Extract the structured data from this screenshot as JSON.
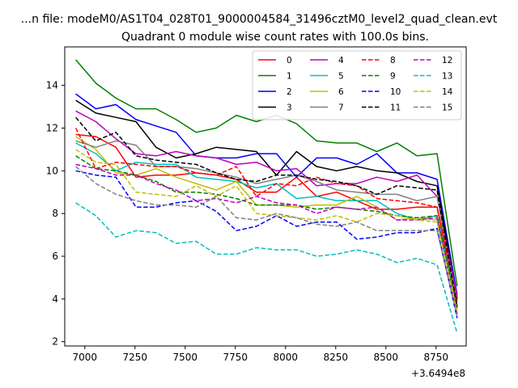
{
  "header": {
    "file_title": "...n file: modeM0/AS1T04_028T01_9000004584_31496cztM0_level2_quad_clean.evt",
    "title": "Quadrant 0 module wise count rates with 100.0s bins."
  },
  "chart_data": {
    "type": "line",
    "title": "Quadrant 0 module wise count rates with 100.0s bins.",
    "xlabel": "",
    "ylabel": "",
    "x_offset_label": "+3.6494e8",
    "xlim": [
      6900,
      8900
    ],
    "ylim": [
      1.8,
      15.8
    ],
    "xticks": [
      7000,
      7250,
      7500,
      7750,
      8000,
      8250,
      8500,
      8750
    ],
    "yticks": [
      2,
      4,
      6,
      8,
      10,
      12,
      14
    ],
    "legend_position": "upper-right",
    "x": [
      6955,
      7055,
      7155,
      7255,
      7355,
      7455,
      7555,
      7655,
      7755,
      7855,
      7955,
      8055,
      8155,
      8255,
      8355,
      8455,
      8555,
      8655,
      8755,
      8855
    ],
    "series": [
      {
        "name": "0",
        "color": "#ff0000",
        "dash": "solid",
        "values": [
          11.7,
          11.6,
          11.1,
          9.7,
          9.8,
          9.8,
          9.9,
          9.8,
          9.6,
          9.0,
          9.0,
          9.7,
          8.8,
          9.0,
          8.6,
          8.2,
          8.2,
          8.3,
          8.3,
          3.7
        ]
      },
      {
        "name": "1",
        "color": "#008000",
        "dash": "solid",
        "values": [
          15.2,
          14.1,
          13.4,
          12.9,
          12.9,
          12.4,
          11.8,
          12.0,
          12.6,
          12.3,
          12.6,
          12.2,
          11.4,
          11.3,
          11.3,
          10.9,
          11.3,
          10.7,
          10.8,
          4.6
        ]
      },
      {
        "name": "2",
        "color": "#0000ff",
        "dash": "solid",
        "values": [
          13.6,
          12.9,
          13.1,
          12.4,
          12.1,
          11.8,
          10.7,
          10.6,
          10.6,
          10.8,
          10.8,
          9.7,
          10.6,
          10.6,
          10.3,
          10.8,
          9.9,
          9.9,
          9.6,
          4.2
        ]
      },
      {
        "name": "3",
        "color": "#000000",
        "dash": "solid",
        "values": [
          13.3,
          12.7,
          12.5,
          12.3,
          11.1,
          10.6,
          10.8,
          11.1,
          11.0,
          10.9,
          9.8,
          10.9,
          10.2,
          10.0,
          10.2,
          10.0,
          9.9,
          9.5,
          9.3,
          4.0
        ]
      },
      {
        "name": "4",
        "color": "#bf00bf",
        "dash": "solid",
        "values": [
          12.8,
          12.3,
          11.5,
          10.8,
          10.7,
          10.9,
          10.7,
          10.6,
          10.3,
          10.4,
          10.0,
          10.1,
          9.3,
          9.4,
          9.4,
          9.7,
          9.5,
          9.8,
          8.8,
          4.1
        ]
      },
      {
        "name": "5",
        "color": "#00bfbf",
        "dash": "solid",
        "values": [
          11.3,
          10.8,
          10.0,
          10.4,
          10.3,
          10.3,
          9.7,
          9.6,
          9.5,
          9.2,
          9.4,
          8.7,
          8.8,
          8.6,
          8.6,
          8.6,
          8.0,
          7.7,
          7.9,
          3.7
        ]
      },
      {
        "name": "6",
        "color": "#bfbf00",
        "dash": "solid",
        "values": [
          11.6,
          11.0,
          9.9,
          9.8,
          10.1,
          9.7,
          9.4,
          9.1,
          9.5,
          8.4,
          8.4,
          8.3,
          8.4,
          8.4,
          8.8,
          8.3,
          7.7,
          7.8,
          7.7,
          3.5
        ]
      },
      {
        "name": "7",
        "color": "#808080",
        "dash": "solid",
        "values": [
          11.4,
          11.1,
          11.4,
          11.2,
          10.2,
          10.2,
          10.1,
          9.9,
          9.7,
          9.4,
          9.6,
          9.8,
          9.5,
          9.1,
          9.0,
          8.9,
          8.9,
          8.6,
          8.8,
          3.6
        ]
      },
      {
        "name": "8",
        "color": "#ff0000",
        "dash": "dashed",
        "values": [
          12.0,
          10.1,
          10.4,
          10.3,
          10.2,
          10.2,
          9.9,
          9.8,
          10.2,
          8.8,
          9.4,
          9.3,
          9.7,
          9.4,
          9.3,
          8.7,
          8.6,
          8.5,
          8.3,
          3.9
        ]
      },
      {
        "name": "9",
        "color": "#008000",
        "dash": "dashed",
        "values": [
          10.7,
          10.1,
          10.0,
          9.8,
          9.5,
          9.0,
          9.0,
          8.9,
          8.7,
          8.4,
          8.4,
          8.4,
          8.2,
          8.3,
          8.2,
          8.1,
          7.9,
          7.8,
          7.9,
          3.7
        ]
      },
      {
        "name": "10",
        "color": "#0000ff",
        "dash": "dashed",
        "values": [
          10.0,
          9.8,
          9.7,
          8.3,
          8.3,
          8.5,
          8.6,
          8.1,
          7.2,
          7.4,
          7.9,
          7.4,
          7.6,
          7.6,
          6.8,
          6.9,
          7.1,
          7.1,
          7.3,
          3.1
        ]
      },
      {
        "name": "11",
        "color": "#000000",
        "dash": "dashed",
        "values": [
          12.5,
          11.4,
          11.8,
          10.7,
          10.5,
          10.4,
          10.3,
          9.9,
          9.6,
          9.5,
          9.8,
          9.8,
          9.6,
          9.5,
          9.3,
          8.9,
          9.3,
          9.2,
          9.1,
          3.6
        ]
      },
      {
        "name": "12",
        "color": "#bf00bf",
        "dash": "dashed",
        "values": [
          10.3,
          10.1,
          9.8,
          9.8,
          9.4,
          9.1,
          8.6,
          8.7,
          8.5,
          8.8,
          8.5,
          8.4,
          8.0,
          8.3,
          8.2,
          8.3,
          7.7,
          7.7,
          7.8,
          3.3
        ]
      },
      {
        "name": "13",
        "color": "#00bfbf",
        "dash": "dashed",
        "values": [
          8.5,
          7.9,
          6.9,
          7.2,
          7.1,
          6.6,
          6.7,
          6.1,
          6.1,
          6.4,
          6.3,
          6.3,
          6.0,
          6.1,
          6.3,
          6.1,
          5.7,
          5.9,
          5.6,
          2.4
        ]
      },
      {
        "name": "14",
        "color": "#bfbf00",
        "dash": "dashed",
        "values": [
          11.0,
          10.4,
          10.3,
          9.0,
          8.9,
          8.8,
          9.3,
          8.8,
          9.3,
          8.0,
          7.9,
          7.8,
          7.7,
          7.9,
          7.6,
          8.0,
          7.9,
          7.7,
          7.6,
          3.4
        ]
      },
      {
        "name": "15",
        "color": "#808080",
        "dash": "dashed",
        "values": [
          10.2,
          9.4,
          8.9,
          8.6,
          8.4,
          8.4,
          8.3,
          8.8,
          7.8,
          7.7,
          8.0,
          7.8,
          7.5,
          7.4,
          7.6,
          7.2,
          7.2,
          7.2,
          7.2,
          3.2
        ]
      }
    ]
  }
}
